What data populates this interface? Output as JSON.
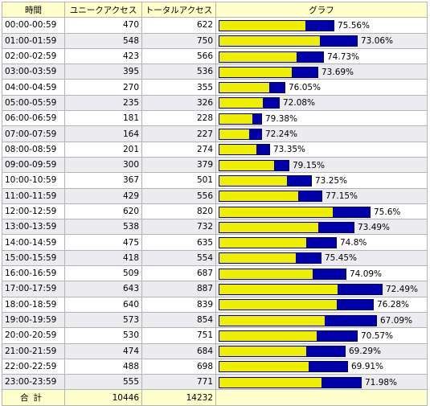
{
  "headers": {
    "time": "時間",
    "unique": "ユニークアクセス",
    "total": "トータルアクセス",
    "graph": "グラフ"
  },
  "rows": [
    {
      "time": "00:00-00:59",
      "unique": 470,
      "total": 622,
      "percent": "75.56%"
    },
    {
      "time": "01:00-01:59",
      "unique": 548,
      "total": 750,
      "percent": "73.06%"
    },
    {
      "time": "02:00-02:59",
      "unique": 423,
      "total": 566,
      "percent": "74.73%"
    },
    {
      "time": "03:00-03:59",
      "unique": 395,
      "total": 536,
      "percent": "73.69%"
    },
    {
      "time": "04:00-04:59",
      "unique": 270,
      "total": 355,
      "percent": "76.05%"
    },
    {
      "time": "05:00-05:59",
      "unique": 235,
      "total": 326,
      "percent": "72.08%"
    },
    {
      "time": "06:00-06:59",
      "unique": 181,
      "total": 228,
      "percent": "79.38%"
    },
    {
      "time": "07:00-07:59",
      "unique": 164,
      "total": 227,
      "percent": "72.24%"
    },
    {
      "time": "08:00-08:59",
      "unique": 201,
      "total": 274,
      "percent": "73.35%"
    },
    {
      "time": "09:00-09:59",
      "unique": 300,
      "total": 379,
      "percent": "79.15%"
    },
    {
      "time": "10:00-10:59",
      "unique": 367,
      "total": 501,
      "percent": "73.25%"
    },
    {
      "time": "11:00-11:59",
      "unique": 429,
      "total": 556,
      "percent": "77.15%"
    },
    {
      "time": "12:00-12:59",
      "unique": 620,
      "total": 820,
      "percent": "75.6%"
    },
    {
      "time": "13:00-13:59",
      "unique": 538,
      "total": 732,
      "percent": "73.49%"
    },
    {
      "time": "14:00-14:59",
      "unique": 475,
      "total": 635,
      "percent": "74.8%"
    },
    {
      "time": "15:00-15:59",
      "unique": 418,
      "total": 554,
      "percent": "75.45%"
    },
    {
      "time": "16:00-16:59",
      "unique": 509,
      "total": 687,
      "percent": "74.09%"
    },
    {
      "time": "17:00-17:59",
      "unique": 643,
      "total": 887,
      "percent": "72.49%"
    },
    {
      "time": "18:00-18:59",
      "unique": 640,
      "total": 839,
      "percent": "76.28%"
    },
    {
      "time": "19:00-19:59",
      "unique": 573,
      "total": 854,
      "percent": "67.09%"
    },
    {
      "time": "20:00-20:59",
      "unique": 530,
      "total": 751,
      "percent": "70.57%"
    },
    {
      "time": "21:00-21:59",
      "unique": 474,
      "total": 684,
      "percent": "69.29%"
    },
    {
      "time": "22:00-22:59",
      "unique": 488,
      "total": 698,
      "percent": "69.91%"
    },
    {
      "time": "23:00-23:59",
      "unique": 555,
      "total": 771,
      "percent": "71.98%"
    }
  ],
  "footer": {
    "label": "合計",
    "unique_total": 10446,
    "total_total": 14232
  },
  "colors": {
    "unique_bar": "#eeee00",
    "total_bar": "#0000aa",
    "header_bg": "#ffffcc",
    "alt_row_bg": "#ebebf0"
  }
}
